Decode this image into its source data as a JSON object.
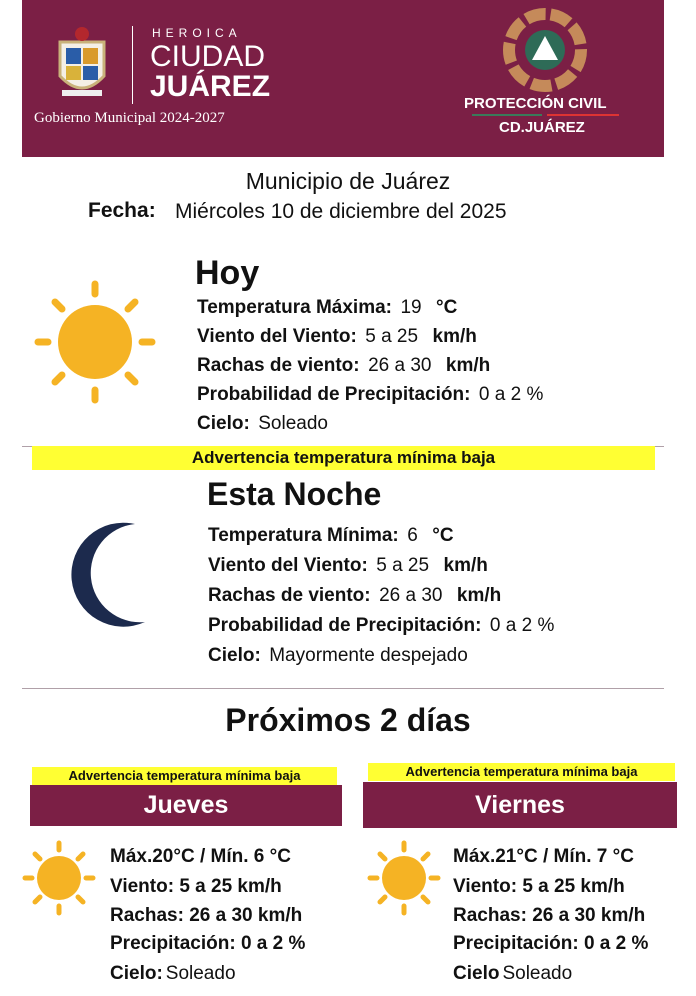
{
  "header": {
    "heroica": "HEROICA",
    "ciudad": "CIUDAD",
    "juarez": "JUÁREZ",
    "gobierno": "Gobierno Municipal 2024-2027",
    "pc_title": "PROTECCIÓN CIVIL",
    "pc_sub": "CD.JUÁREZ",
    "brand_color": "#7b1f45"
  },
  "municipio": "Municipio de Juárez",
  "fecha_label": "Fecha:",
  "fecha_value": "Miércoles 10 de diciembre del 2025",
  "hoy": {
    "title": "Hoy",
    "icon": "sun-icon",
    "rows": [
      {
        "label": "Temperatura Máxima:",
        "value": "19",
        "unit": "°C"
      },
      {
        "label": "Viento del Viento:",
        "value": "5 a 25",
        "unit": "km/h"
      },
      {
        "label": "Rachas de viento:",
        "value": "26 a 30",
        "unit": "km/h"
      },
      {
        "label": "Probabilidad de Precipitación:",
        "value": "0 a 2 %",
        "unit": ""
      },
      {
        "label": "Cielo:",
        "value": "Soleado",
        "unit": ""
      }
    ]
  },
  "warning": "Advertencia  temperatura mínima baja",
  "noche": {
    "title": "Esta Noche",
    "icon": "moon-icon",
    "rows": [
      {
        "label": "Temperatura Mínima:",
        "value": "6",
        "unit": "°C"
      },
      {
        "label": "Viento del Viento:",
        "value": "5 a 25",
        "unit": "km/h"
      },
      {
        "label": "Rachas de viento:",
        "value": "26 a 30",
        "unit": "km/h"
      },
      {
        "label": "Probabilidad de Precipitación:",
        "value": "0 a 2 %",
        "unit": ""
      },
      {
        "label": "Cielo:",
        "value": "Mayormente despejado",
        "unit": ""
      }
    ]
  },
  "proximos_title": "Próximos 2 días",
  "days": [
    {
      "warning": "Advertencia  temperatura mínima baja",
      "name": "Jueves",
      "temp": "Máx.20°C / Mín.  6  °C",
      "viento_label": "Viento:",
      "viento": "5 a 25 km/h",
      "rachas_label": "Rachas:",
      "rachas": "26 a 30 km/h",
      "precip_label": "Precipitación:",
      "precip": "0 a 2 %",
      "cielo_label": "Cielo:",
      "cielo": "Soleado"
    },
    {
      "warning": "Advertencia  temperatura mínima baja",
      "name": "Viernes",
      "temp": "Máx.21°C / Mín.  7  °C",
      "viento_label": "Viento:",
      "viento": "5 a 25 km/h",
      "rachas_label": "Rachas:",
      "rachas": "26 a 30 km/h",
      "precip_label": "Precipitación:",
      "precip": "0 a 2 %",
      "cielo_label": "Cielo",
      "cielo": "Soleado"
    }
  ]
}
